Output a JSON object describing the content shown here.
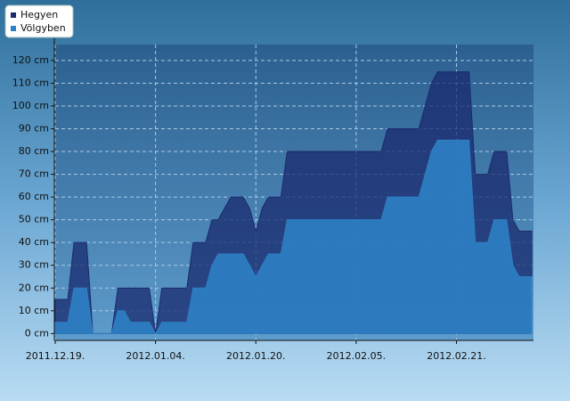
{
  "chart_data": {
    "type": "area",
    "categories": [
      "2011.12.19.",
      null,
      null,
      null,
      null,
      null,
      null,
      null,
      null,
      null,
      null,
      null,
      null,
      null,
      null,
      null,
      "2012.01.04.",
      null,
      null,
      null,
      null,
      null,
      null,
      null,
      null,
      null,
      null,
      null,
      null,
      null,
      null,
      null,
      "2012.01.20.",
      null,
      null,
      null,
      null,
      null,
      null,
      null,
      null,
      null,
      null,
      null,
      null,
      null,
      null,
      null,
      "2012.02.05.",
      null,
      null,
      null,
      null,
      null,
      null,
      null,
      null,
      null,
      null,
      null,
      null,
      null,
      null,
      null,
      "2012.02.21.",
      null,
      null,
      null,
      null,
      null,
      null,
      null,
      null,
      null,
      null,
      null,
      null
    ],
    "series": [
      {
        "name": "Hegyen",
        "color": "#1a2a6e",
        "values": [
          15,
          15,
          15,
          40,
          40,
          40,
          0,
          0,
          0,
          0,
          20,
          20,
          20,
          20,
          20,
          20,
          0,
          20,
          20,
          20,
          20,
          20,
          40,
          40,
          40,
          50,
          50,
          55,
          60,
          60,
          60,
          55,
          45,
          55,
          60,
          60,
          60,
          80,
          80,
          80,
          80,
          80,
          80,
          80,
          80,
          80,
          80,
          80,
          80,
          80,
          80,
          80,
          80,
          90,
          90,
          90,
          90,
          90,
          90,
          100,
          110,
          115,
          115,
          115,
          115,
          115,
          115,
          70,
          70,
          70,
          80,
          80,
          80,
          50,
          45,
          45,
          45
        ]
      },
      {
        "name": "Völgyben",
        "color": "#2e7fc4",
        "values": [
          5,
          5,
          5,
          20,
          20,
          20,
          0,
          0,
          0,
          0,
          10,
          10,
          5,
          5,
          5,
          5,
          0,
          5,
          5,
          5,
          5,
          5,
          20,
          20,
          20,
          30,
          35,
          35,
          35,
          35,
          35,
          30,
          25,
          30,
          35,
          35,
          35,
          50,
          50,
          50,
          50,
          50,
          50,
          50,
          50,
          50,
          50,
          50,
          50,
          50,
          50,
          50,
          50,
          60,
          60,
          60,
          60,
          60,
          60,
          70,
          80,
          85,
          85,
          85,
          85,
          85,
          85,
          40,
          40,
          40,
          50,
          50,
          50,
          30,
          25,
          25,
          25
        ]
      }
    ],
    "ylim": [
      -3,
      127
    ],
    "yticks": [
      {
        "value": 0,
        "label": "0 cm"
      },
      {
        "value": 10,
        "label": "10 cm"
      },
      {
        "value": 20,
        "label": "20 cm"
      },
      {
        "value": 30,
        "label": "30 cm"
      },
      {
        "value": 40,
        "label": "40 cm"
      },
      {
        "value": 50,
        "label": "50 cm"
      },
      {
        "value": 60,
        "label": "60 cm"
      },
      {
        "value": 70,
        "label": "70 cm"
      },
      {
        "value": 80,
        "label": "80 cm"
      },
      {
        "value": 90,
        "label": "90 cm"
      },
      {
        "value": 100,
        "label": "100 cm"
      },
      {
        "value": 110,
        "label": "110 cm"
      },
      {
        "value": 120,
        "label": "120 cm"
      }
    ],
    "grid": true,
    "legend": "top-left"
  }
}
